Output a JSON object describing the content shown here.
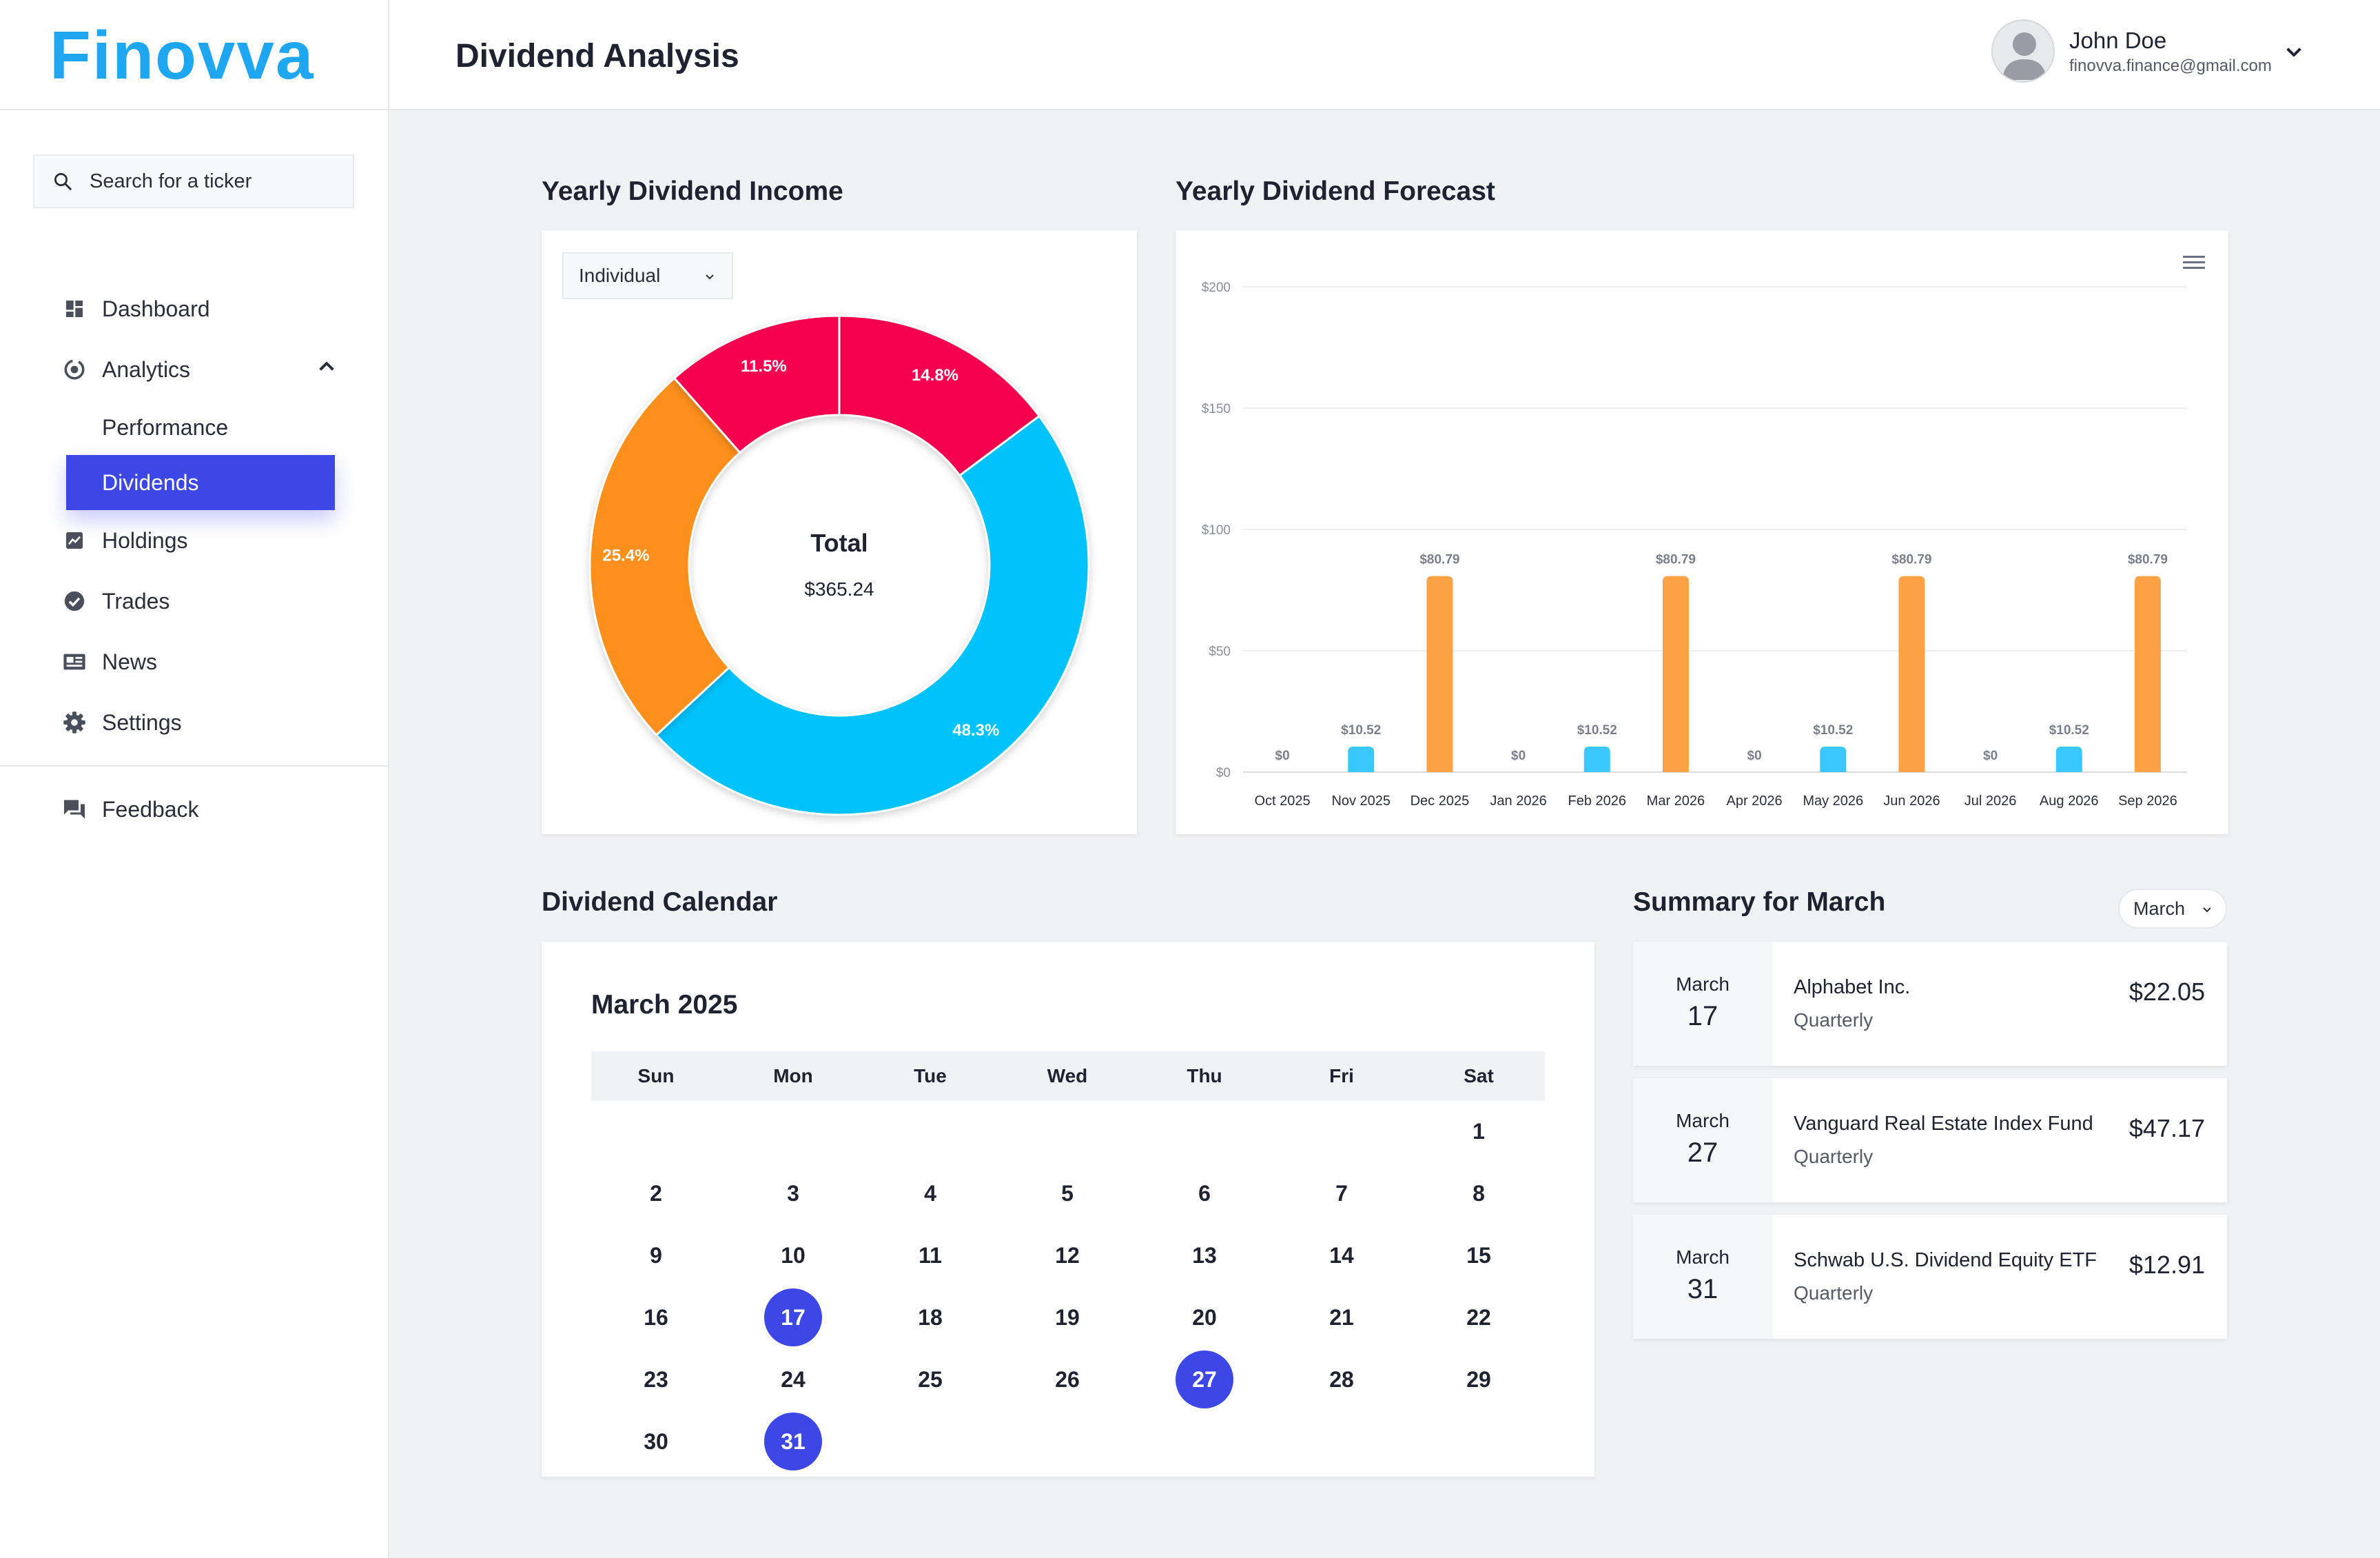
{
  "brand": {
    "name": "Finovva",
    "color": "#1ea7f0"
  },
  "header": {
    "title": "Dividend Analysis",
    "user_name": "John Doe",
    "user_email": "finovva.finance@gmail.com"
  },
  "sidebar": {
    "search_placeholder": "Search for a ticker",
    "items": [
      {
        "label": "Dashboard",
        "icon": "dashboard-icon"
      },
      {
        "label": "Analytics",
        "icon": "analytics-icon",
        "expanded": true,
        "children": [
          {
            "label": "Performance",
            "active": false
          },
          {
            "label": "Dividends",
            "active": true
          }
        ]
      },
      {
        "label": "Holdings",
        "icon": "chart-icon"
      },
      {
        "label": "Trades",
        "icon": "check-circle-icon"
      },
      {
        "label": "News",
        "icon": "newspaper-icon"
      },
      {
        "label": "Settings",
        "icon": "gear-icon"
      }
    ],
    "feedback": {
      "label": "Feedback",
      "icon": "chat-icon"
    }
  },
  "income": {
    "title": "Yearly Dividend Income",
    "select_value": "Individual",
    "center_label": "Total",
    "center_value": "$365.24"
  },
  "forecast": {
    "title": "Yearly Dividend Forecast"
  },
  "chart_data": [
    {
      "type": "pie",
      "title": "Yearly Dividend Income",
      "donut": true,
      "slices": [
        {
          "value": 14.8,
          "label": "14.8%",
          "color": "#f5054f"
        },
        {
          "value": 48.3,
          "label": "48.3%",
          "color": "#00c3fe"
        },
        {
          "value": 25.4,
          "label": "25.4%",
          "color": "#fd901a"
        },
        {
          "value": 11.5,
          "label": "11.5%",
          "color": "#f5054f"
        }
      ]
    },
    {
      "type": "bar",
      "title": "Yearly Dividend Forecast",
      "categories": [
        "Oct 2025",
        "Nov 2025",
        "Dec 2025",
        "Jan 2026",
        "Feb 2026",
        "Mar 2026",
        "Apr 2026",
        "May 2026",
        "Jun 2026",
        "Jul 2026",
        "Aug 2026",
        "Sep 2026"
      ],
      "values": [
        0,
        10.52,
        80.79,
        0,
        10.52,
        80.79,
        0,
        10.52,
        80.79,
        0,
        10.52,
        80.79
      ],
      "labels": [
        "$0",
        "$10.52",
        "$80.79",
        "$0",
        "$10.52",
        "$80.79",
        "$0",
        "$10.52",
        "$80.79",
        "$0",
        "$10.52",
        "$80.79"
      ],
      "colors": [
        "#38c8fd",
        "#38c8fd",
        "#fda145",
        "#38c8fd",
        "#38c8fd",
        "#fda145",
        "#38c8fd",
        "#38c8fd",
        "#fda145",
        "#38c8fd",
        "#38c8fd",
        "#fda145"
      ],
      "yticks": [
        "$0",
        "$50",
        "$100",
        "$150",
        "$200"
      ],
      "ylim": [
        0,
        200
      ],
      "grid": true
    }
  ],
  "calendar": {
    "section_title": "Dividend Calendar",
    "month_title": "March 2025",
    "weekdays": [
      "Sun",
      "Mon",
      "Tue",
      "Wed",
      "Thu",
      "Fri",
      "Sat"
    ],
    "first_weekday": 6,
    "days_in_month": 31,
    "highlighted": [
      17,
      27,
      31
    ]
  },
  "summary": {
    "title": "Summary for March",
    "select_value": "March",
    "items": [
      {
        "month": "March",
        "day": "17",
        "name": "Alphabet Inc.",
        "frequency": "Quarterly",
        "amount": "$22.05"
      },
      {
        "month": "March",
        "day": "27",
        "name": "Vanguard Real Estate Index Fund",
        "frequency": "Quarterly",
        "amount": "$47.17"
      },
      {
        "month": "March",
        "day": "31",
        "name": "Schwab U.S. Dividend Equity ETF",
        "frequency": "Quarterly",
        "amount": "$12.91"
      }
    ]
  }
}
